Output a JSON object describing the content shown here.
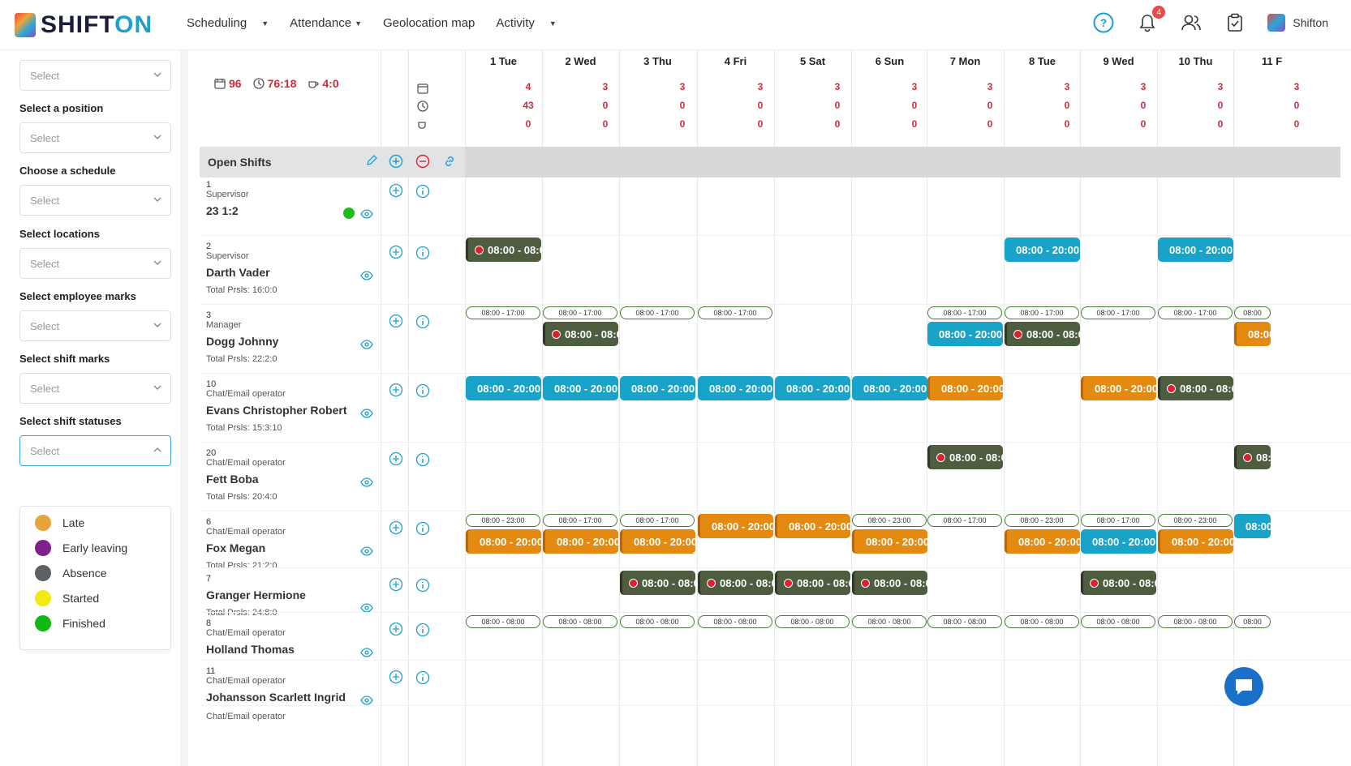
{
  "header": {
    "logo_a": "SHIFT",
    "logo_b": "ON",
    "nav": [
      {
        "label": "Scheduling"
      },
      {
        "label": "Attendance"
      },
      {
        "label": "Geolocation map"
      },
      {
        "label": "Activity"
      }
    ],
    "notification_count": "4",
    "user_name": "Shifton"
  },
  "sidebar": {
    "fields": [
      {
        "label": "",
        "placeholder": "Select"
      },
      {
        "label": "Select a position",
        "placeholder": "Select"
      },
      {
        "label": "Choose a schedule",
        "placeholder": "Select"
      },
      {
        "label": "Select locations",
        "placeholder": "Select"
      },
      {
        "label": "Select employee marks",
        "placeholder": "Select"
      },
      {
        "label": "Select shift marks",
        "placeholder": "Select"
      },
      {
        "label": "Select shift statuses",
        "placeholder": "Select"
      }
    ],
    "status_options": [
      {
        "label": "Late",
        "color": "#e8a23a"
      },
      {
        "label": "Early leaving",
        "color": "#7e1f8a"
      },
      {
        "label": "Absence",
        "color": "#5d6064"
      },
      {
        "label": "Started",
        "color": "#f2ea12"
      },
      {
        "label": "Finished",
        "color": "#14b814"
      }
    ]
  },
  "summary": {
    "shifts": "96",
    "hours": "76:18",
    "breaks": "4:0"
  },
  "days": [
    "1 Tue",
    "2 Wed",
    "3 Thu",
    "4 Fri",
    "5 Sat",
    "6 Sun",
    "7 Mon",
    "8 Tue",
    "9 Wed",
    "10 Thu",
    "11 F"
  ],
  "day_totals": {
    "shifts": [
      "4",
      "3",
      "3",
      "3",
      "3",
      "3",
      "3",
      "3",
      "3",
      "3",
      "3"
    ],
    "hours": [
      "43",
      "0",
      "0",
      "0",
      "0",
      "0",
      "0",
      "0",
      "0",
      "0",
      "0"
    ],
    "breaks": [
      "0",
      "0",
      "0",
      "0",
      "0",
      "0",
      "0",
      "0",
      "0",
      "0",
      "0"
    ]
  },
  "open_shifts_label": "Open Shifts",
  "employees": [
    {
      "num": "1",
      "position": "Supervisor",
      "name": "23 1:2",
      "total": ""
    },
    {
      "num": "2",
      "position": "Supervisor",
      "name": "Darth Vader",
      "total": "Total Prsls: 16:0:0"
    },
    {
      "num": "3",
      "position": "Manager",
      "name": "Dogg Johnny",
      "total": "Total Prsls: 22:2:0"
    },
    {
      "num": "10",
      "position": "Chat/Email operator",
      "name": "Evans Christopher Robert",
      "total": "Total Prsls: 15:3:10"
    },
    {
      "num": "20",
      "position": "Chat/Email operator",
      "name": "Fett Boba",
      "total": "Total Prsls: 20:4:0"
    },
    {
      "num": "6",
      "position": "Chat/Email operator",
      "name": "Fox Megan",
      "total": "Total Prsls: 21:2:0"
    },
    {
      "num": "7",
      "position": "",
      "name": "Granger Hermione",
      "total": "Total Prsls: 24:8:0"
    },
    {
      "num": "8",
      "position": "Chat/Email operator",
      "name": "Holland Thomas",
      "total": ""
    },
    {
      "num": "11",
      "position": "Chat/Email operator",
      "name": "Johansson Scarlett Ingrid",
      "total": ""
    },
    {
      "num": "",
      "position": "Chat/Email operator",
      "name": "",
      "total": ""
    }
  ],
  "shift_labels": {
    "full": "08:00 - 20:00",
    "cut": "08:00 - 08:0",
    "work": "08:00 - 17:00",
    "evening": "08:00 - 23:00",
    "allday": "08:00 - 08:00",
    "edge": "08:00"
  }
}
